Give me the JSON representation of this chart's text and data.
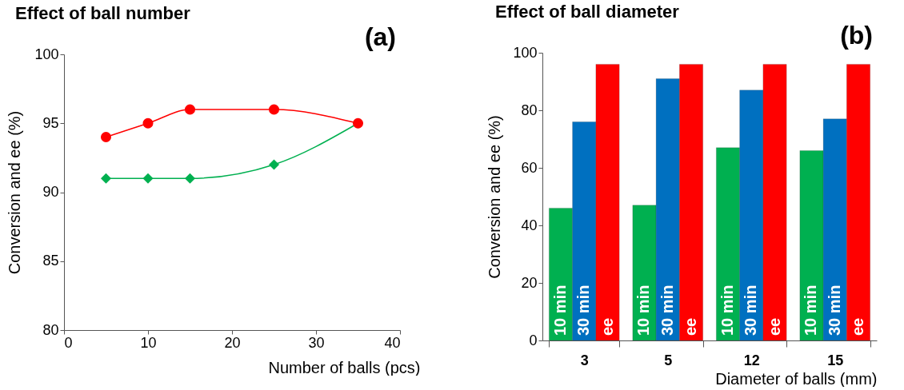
{
  "chart_data": [
    {
      "type": "line",
      "title": "Effect of ball number",
      "annotations": [
        "(a)"
      ],
      "xlabel": "Number of balls (pcs)",
      "ylabel": "Conversion and ee (%)",
      "xlim": [
        0,
        40
      ],
      "xticks": [
        0,
        10,
        20,
        30,
        40
      ],
      "ylim": [
        80,
        100
      ],
      "yticks": [
        80,
        85,
        90,
        95,
        100
      ],
      "grid": false,
      "legend": false,
      "line_style": "solid",
      "series": [
        {
          "color": "#ff0000",
          "marker": "circle",
          "x": [
            5,
            10,
            15,
            25,
            35
          ],
          "values": [
            94,
            95,
            96,
            96,
            95
          ]
        },
        {
          "color": "#00b050",
          "marker": "diamond",
          "x": [
            5,
            10,
            15,
            25,
            35
          ],
          "values": [
            91,
            91,
            91,
            92,
            95
          ]
        }
      ]
    },
    {
      "type": "bar",
      "title": "Effect of ball diameter",
      "annotations": [
        "(b)"
      ],
      "xlabel": "Diameter of balls (mm)",
      "ylabel": "Conversion and ee (%)",
      "categories": [
        "3",
        "5",
        "12",
        "15"
      ],
      "ylim": [
        0,
        100
      ],
      "yticks": [
        0,
        20,
        40,
        60,
        80,
        100
      ],
      "grid": false,
      "legend": false,
      "series": [
        {
          "name": "10 min",
          "color": "#00b050",
          "values": [
            46,
            47,
            67,
            66
          ]
        },
        {
          "name": "30 min",
          "color": "#0070c0",
          "values": [
            76,
            91,
            87,
            77
          ]
        },
        {
          "name": "ee",
          "color": "#ff0000",
          "values": [
            96,
            96,
            96,
            96
          ]
        }
      ]
    }
  ]
}
